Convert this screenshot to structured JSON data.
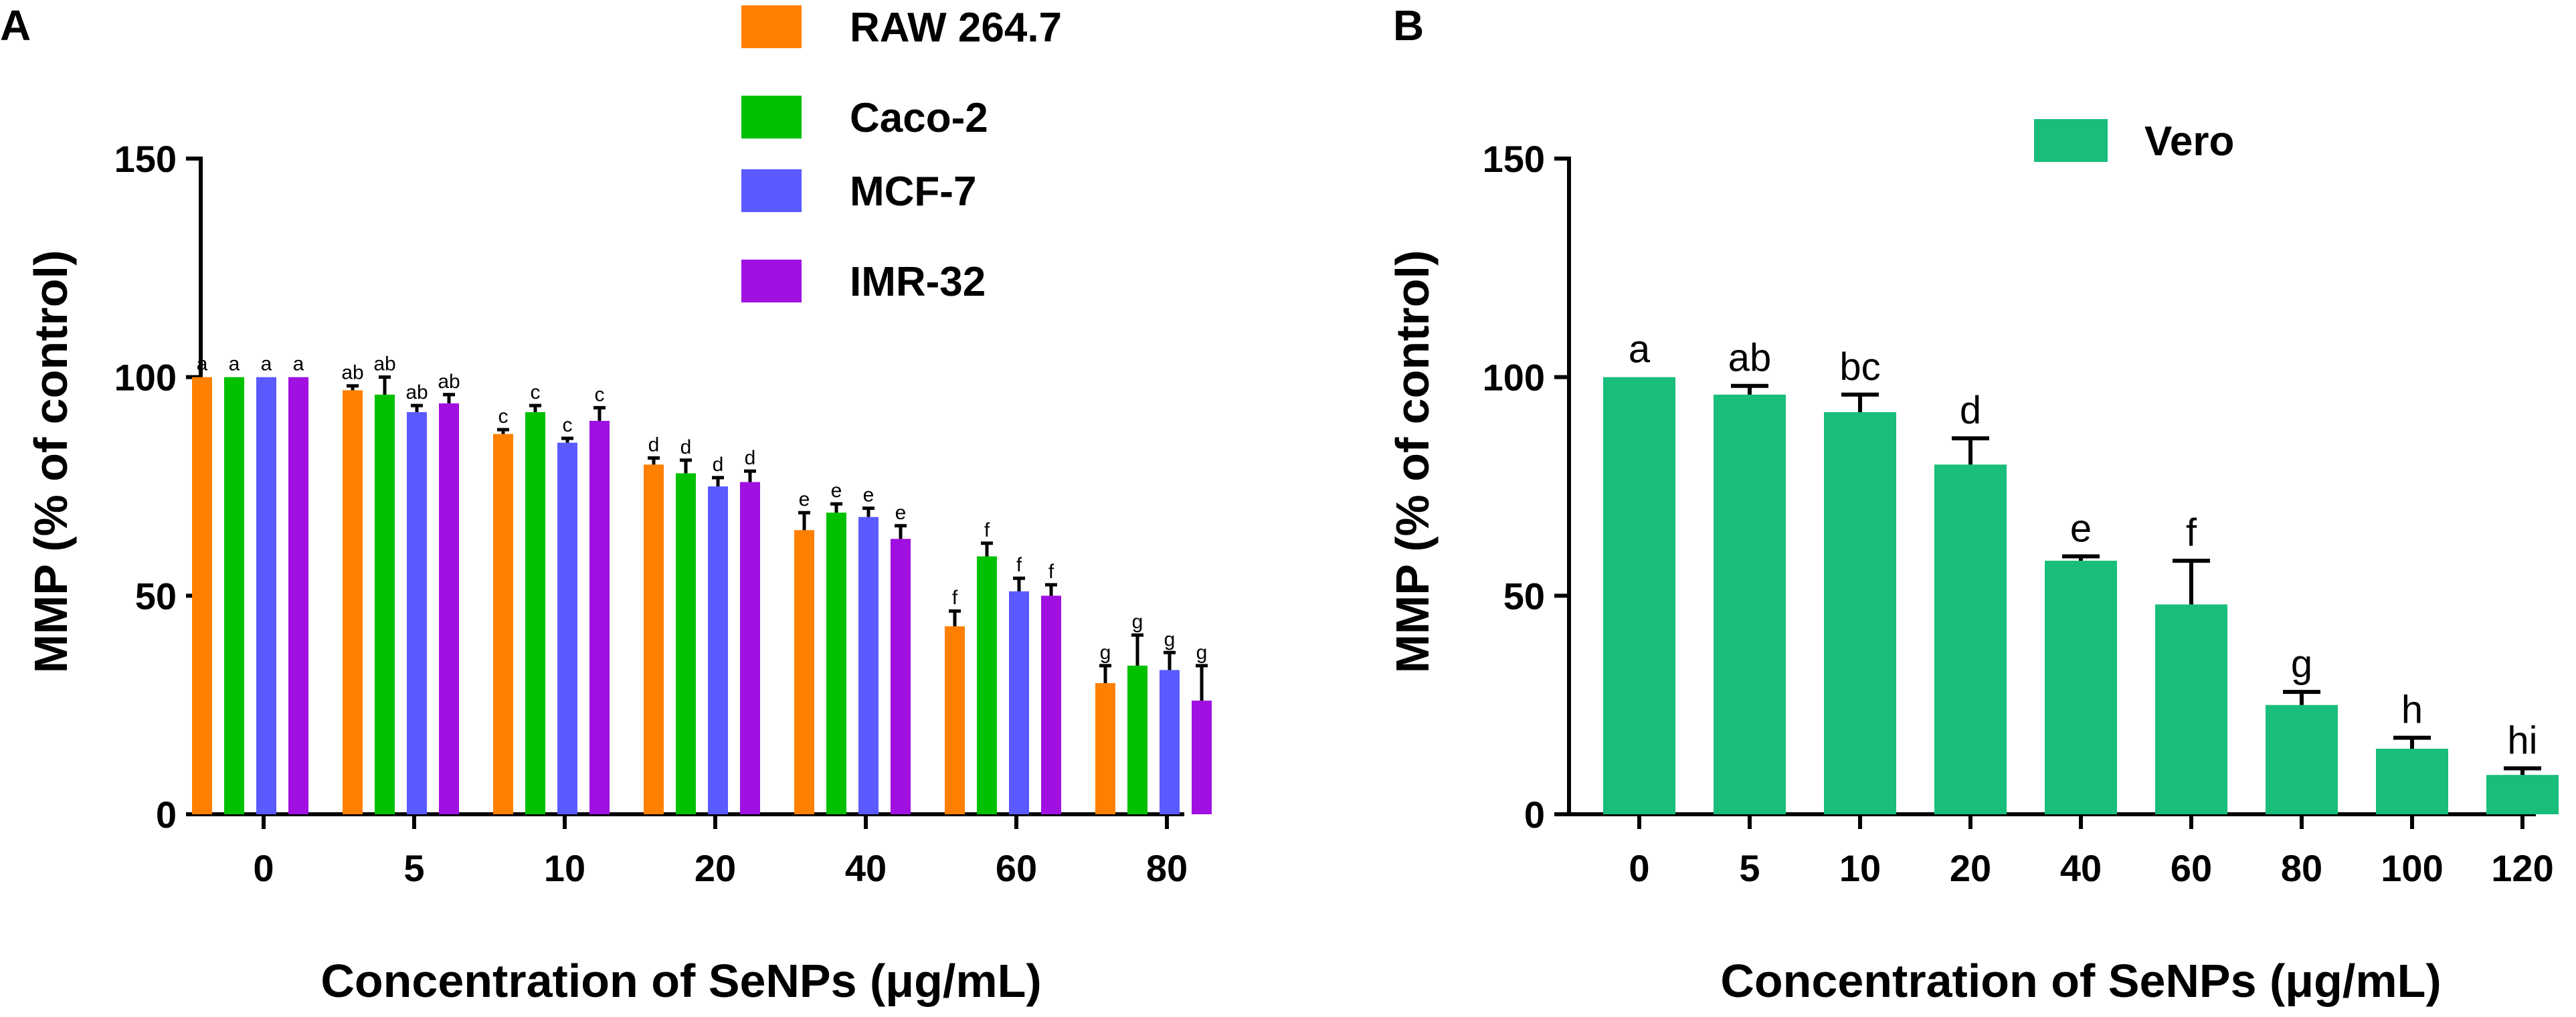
{
  "chart_data": [
    {
      "panel": "A",
      "type": "bar",
      "title": "",
      "xlabel": "Concentration of SeNPs (μg/mL)",
      "ylabel": "MMP (% of control)",
      "ylim": [
        0,
        150
      ],
      "yticks": [
        0,
        50,
        100,
        150
      ],
      "categories": [
        "0",
        "5",
        "10",
        "20",
        "40",
        "60",
        "80"
      ],
      "legend_position": "top",
      "series": [
        {
          "name": "RAW 264.7",
          "color": "#FF8000",
          "values": [
            100,
            97,
            87,
            80,
            65,
            43,
            30
          ],
          "errors": [
            0,
            1,
            1,
            1.5,
            4,
            3.5,
            4
          ],
          "letters": [
            "a",
            "ab",
            "c",
            "d",
            "e",
            "f",
            "g"
          ]
        },
        {
          "name": "Caco-2",
          "color": "#00C000",
          "values": [
            100,
            96,
            92,
            78,
            69,
            59,
            34
          ],
          "errors": [
            0,
            4,
            1.5,
            3,
            2,
            3,
            7
          ],
          "letters": [
            "a",
            "ab",
            "c",
            "d",
            "e",
            "f",
            "g"
          ]
        },
        {
          "name": "MCF-7",
          "color": "#5A5AFF",
          "values": [
            100,
            92,
            85,
            75,
            68,
            51,
            33
          ],
          "errors": [
            0,
            1.5,
            1,
            2,
            2,
            3,
            4
          ],
          "letters": [
            "a",
            "ab",
            "c",
            "d",
            "e",
            "f",
            "g"
          ]
        },
        {
          "name": "IMR-32",
          "color": "#A010E0",
          "values": [
            100,
            94,
            90,
            76,
            63,
            50,
            26
          ],
          "errors": [
            0,
            2,
            3,
            2.5,
            3,
            2.5,
            8
          ],
          "letters": [
            "a",
            "ab",
            "c",
            "d",
            "e",
            "f",
            "g"
          ]
        }
      ]
    },
    {
      "panel": "B",
      "type": "bar",
      "title": "",
      "xlabel": "Concentration of SeNPs (μg/mL)",
      "ylabel": "MMP (% of control)",
      "ylim": [
        0,
        150
      ],
      "yticks": [
        0,
        50,
        100,
        150
      ],
      "categories": [
        "0",
        "5",
        "10",
        "20",
        "40",
        "60",
        "80",
        "100",
        "120"
      ],
      "legend_position": "top-center",
      "series": [
        {
          "name": "Vero",
          "color": "#18BE7A",
          "values": [
            100,
            96,
            92,
            80,
            58,
            48,
            25,
            15,
            9
          ],
          "errors": [
            0,
            2,
            4,
            6,
            1,
            10,
            3,
            2.5,
            1.5
          ],
          "letters": [
            "a",
            "ab",
            "bc",
            "d",
            "e",
            "f",
            "g",
            "h",
            "hi"
          ]
        }
      ]
    }
  ]
}
